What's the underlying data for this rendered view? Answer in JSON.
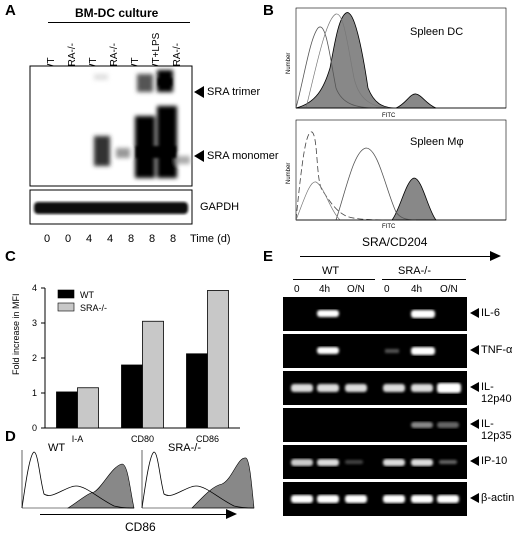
{
  "panels": {
    "A": {
      "letter": "A",
      "header": "BM-DC culture",
      "lane_labels": [
        "WT",
        "SRA-/-",
        "WT",
        "SRA-/-",
        "WT",
        "WT+LPS",
        "SRA-/-"
      ],
      "band_labels": {
        "trimer": "SRA trimer",
        "monomer": "SRA monomer",
        "gapdh": "GAPDH"
      },
      "time_values": [
        "0",
        "0",
        "4",
        "4",
        "8",
        "8",
        "8"
      ],
      "time_label": "Time (d)"
    },
    "B": {
      "letter": "B",
      "top_title": "Spleen DC",
      "bottom_title": "Spleen Mφ",
      "x_axis_label": "SRA/CD204",
      "y_axis_label": "Number",
      "fitc_label": "FITC"
    },
    "C": {
      "letter": "C",
      "ylabel": "Fold increase in MFI",
      "legend": [
        "WT",
        "SRA-/-"
      ]
    },
    "D": {
      "letter": "D",
      "left_title": "WT",
      "right_title": "SRA-/-",
      "x_axis_label": "CD86"
    },
    "E": {
      "letter": "E",
      "group_labels": [
        "WT",
        "SRA-/-"
      ],
      "lane_labels": [
        "0",
        "4h",
        "O/N",
        "0",
        "4h",
        "O/N"
      ],
      "genes": [
        "IL-6",
        "TNF-α",
        "IL-12p40",
        "IL-12p35",
        "IP-10",
        "β-actin"
      ]
    }
  },
  "chart_data": {
    "type": "bar",
    "categories": [
      "I-A",
      "CD80",
      "CD86"
    ],
    "series": [
      {
        "name": "WT",
        "values": [
          1.03,
          1.8,
          2.12
        ]
      },
      {
        "name": "SRA-/-",
        "values": [
          1.15,
          3.05,
          3.93
        ]
      }
    ],
    "ylabel": "Fold increase in MFI",
    "ylim": [
      0,
      4
    ],
    "yticks": [
      "0",
      "1",
      "2",
      "3",
      "4"
    ],
    "colors": {
      "WT": "#000000",
      "SRA-/-": "#c8c8c8"
    }
  }
}
